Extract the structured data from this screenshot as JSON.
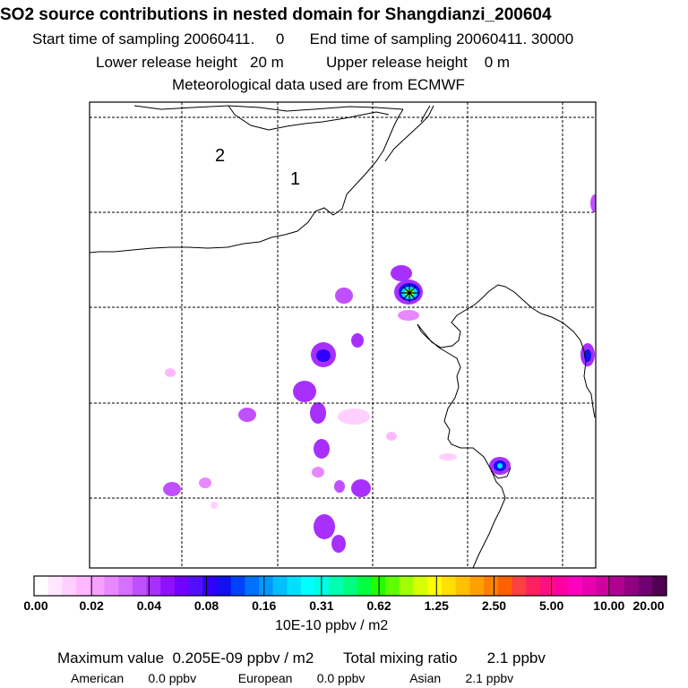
{
  "header": {
    "title": "SO2 source contributions in nested domain for Shangdianzi_200604",
    "sampling": "Start time of sampling 20060411.     0      End time of sampling 20060411. 30000",
    "release": "Lower release height   20 m          Upper release height    0 m",
    "meteo": "Meteorological data used are from ECMWF"
  },
  "map": {
    "labels": [
      "2",
      "1"
    ]
  },
  "colorbar": {
    "tick_labels": [
      "0.00",
      "0.02",
      "0.04",
      "0.08",
      "0.16",
      "0.31",
      "0.62",
      "1.25",
      "2.50",
      "5.00",
      "10.00",
      "20.00"
    ],
    "unit": "10E-10 ppbv / m2",
    "colors": [
      "#ffffff",
      "#ffe8ff",
      "#ffd0ff",
      "#ffb8ff",
      "#f8a0ff",
      "#e888ff",
      "#d870ff",
      "#c050ff",
      "#a830ff",
      "#9010ff",
      "#7000ff",
      "#5010ff",
      "#3000ff",
      "#1010f0",
      "#0040ff",
      "#0070ff",
      "#0098ff",
      "#00c0ff",
      "#00e0ff",
      "#00ffff",
      "#00ffe0",
      "#00ffb0",
      "#00ff80",
      "#00ff40",
      "#20ff00",
      "#60ff00",
      "#a0ff00",
      "#d8ff00",
      "#ffff00",
      "#ffe000",
      "#ffc000",
      "#ffa000",
      "#ff8000",
      "#ff6000",
      "#ff4040",
      "#ff2060",
      "#ff1080",
      "#ff00a0",
      "#ff00c0",
      "#e800b0",
      "#d000a0",
      "#b00090",
      "#900080",
      "#700070",
      "#500050"
    ]
  },
  "summary": {
    "max_line": "Maximum value  0.205E-09 ppbv / m2       Total mixing ratio       2.1 ppbv",
    "regions_line": "American       0.0 ppbv            European       0.0 ppbv             Asian       2.1 ppbv"
  }
}
